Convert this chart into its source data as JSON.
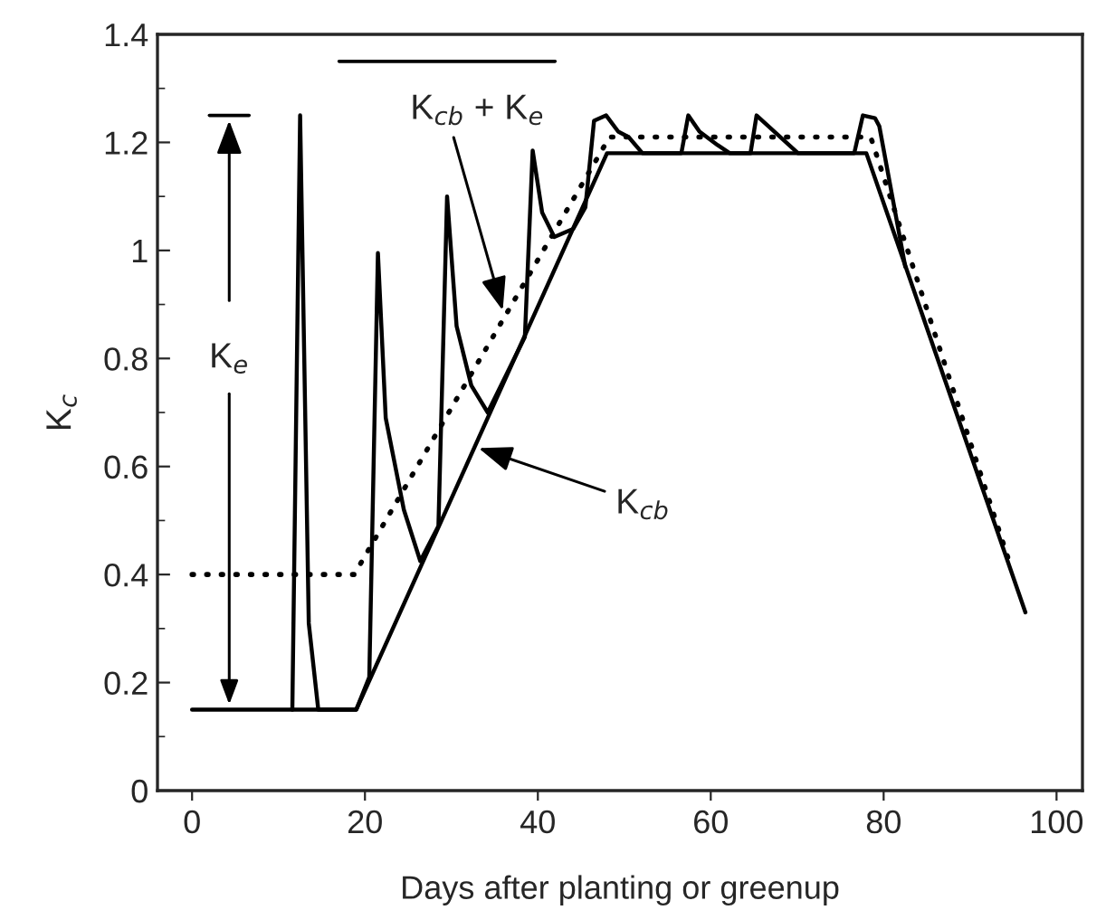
{
  "chart_data": {
    "type": "line",
    "xlabel": "Days after planting or greenup",
    "ylabel": "K$_{c}$",
    "xlim": [
      -4,
      103
    ],
    "ylim": [
      0,
      1.4
    ],
    "xticks": [
      0,
      20,
      40,
      60,
      80,
      100
    ],
    "yticks": [
      0,
      0.2,
      0.4,
      0.6,
      0.8,
      1,
      1.2,
      1.4
    ],
    "grid": false,
    "legend": false,
    "series": [
      {
        "color": "#000000",
        "line_style": "solid",
        "x": [
          0,
          19,
          48,
          78,
          96.4
        ],
        "values": [
          0.15,
          0.15,
          1.18,
          1.18,
          0.33
        ]
      },
      {
        "color": "#000000",
        "line_style": "dotted",
        "x": [
          0,
          18.75,
          48.3,
          78.5,
          94.4
        ],
        "values": [
          0.4,
          0.4,
          1.21,
          1.21,
          0.43
        ]
      },
      {
        "color": "#000000",
        "line_style": "solid",
        "x": [
          11.6,
          12.5,
          13.5,
          14.6,
          19,
          20.5,
          21.5,
          22.4,
          24.5,
          26.4,
          28.5,
          29.5,
          30.6,
          32.3,
          34.2,
          38.5,
          39.4,
          40.5,
          41.9,
          44.1,
          45.5,
          46.5,
          47.9,
          49.3,
          50.5,
          52.1,
          56.6,
          57.4,
          58.7,
          60.8,
          62.2,
          64.6,
          65.3,
          70.1,
          76.6,
          77.6,
          79,
          79.5,
          82.5
        ],
        "values": [
          0.15,
          1.25,
          0.31,
          0.15,
          0.15,
          0.21,
          0.995,
          0.69,
          0.52,
          0.425,
          0.49,
          1.1,
          0.86,
          0.75,
          0.7,
          0.84,
          1.185,
          1.07,
          1.025,
          1.04,
          1.08,
          1.24,
          1.25,
          1.22,
          1.21,
          1.18,
          1.18,
          1.25,
          1.22,
          1.195,
          1.18,
          1.18,
          1.25,
          1.18,
          1.18,
          1.25,
          1.245,
          1.23,
          0.97
        ]
      }
    ],
    "annotations": [
      {
        "text": "K$_{cb}$ + K$_{e}$",
        "x": 36.1,
        "y": 0.88
      },
      {
        "text": "K$_{cb}$",
        "x": 32.6,
        "y": 0.637
      },
      {
        "text": "K$_{e}$",
        "x": 4.3,
        "y": 0.15
      }
    ]
  }
}
